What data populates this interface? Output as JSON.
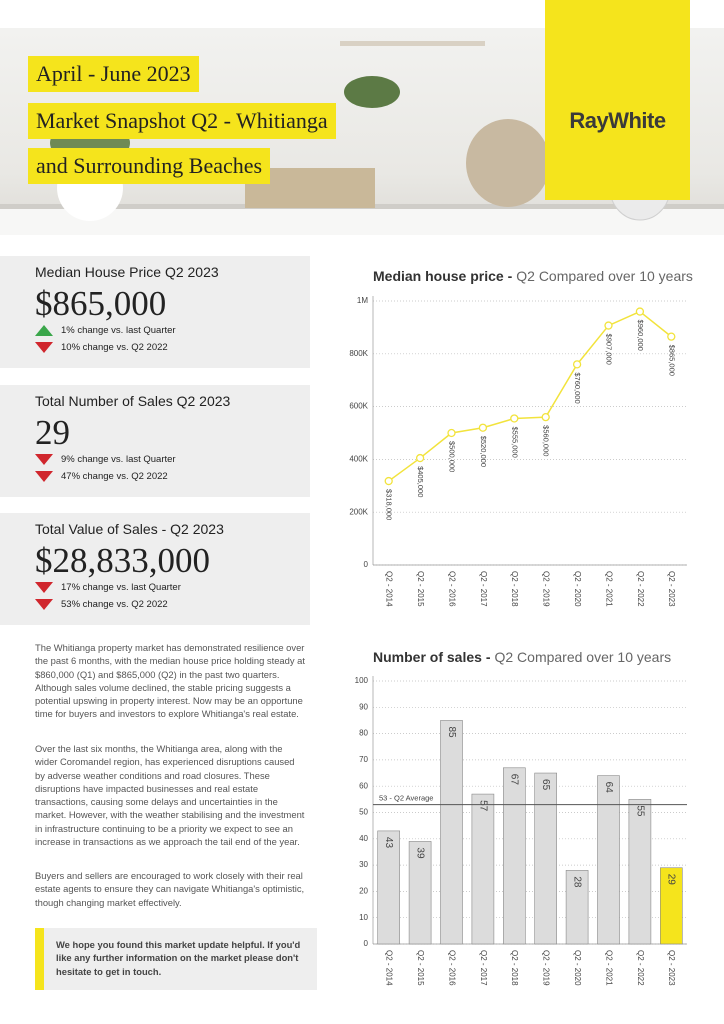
{
  "header": {
    "title_lines": [
      "April - June 2023",
      "Market Snapshot Q2 - Whitianga",
      "and Surrounding Beaches"
    ],
    "logo": "RayWhite"
  },
  "stats": [
    {
      "title": "Median House Price Q2 2023",
      "value": "$865,000",
      "changes": [
        {
          "direction": "up",
          "text": "1% change vs. last Quarter"
        },
        {
          "direction": "down",
          "text": "10% change vs. Q2 2022"
        }
      ]
    },
    {
      "title": "Total Number of Sales Q2 2023",
      "value": "29",
      "changes": [
        {
          "direction": "down",
          "text": "9% change vs. last Quarter"
        },
        {
          "direction": "down",
          "text": "47% change vs. Q2 2022"
        }
      ]
    },
    {
      "title": "Total Value of Sales - Q2 2023",
      "value": "$28,833,000",
      "changes": [
        {
          "direction": "down",
          "text": "17% change vs. last Quarter"
        },
        {
          "direction": "down",
          "text": "53% change vs. Q2 2022"
        }
      ]
    }
  ],
  "paragraphs": [
    "The Whitianga property market has demonstrated resilience over the past 6 months, with the median house price holding steady at $860,000 (Q1) and $865,000 (Q2) in the past two quarters. Although sales volume declined, the stable pricing suggests a potential upswing in property interest. Now may be an opportune time for buyers and investors to explore Whitianga's real estate.",
    "Over the last six months, the Whitianga area, along with the wider Coromandel region, has experienced disruptions caused by adverse weather conditions and road closures. These disruptions have impacted businesses and real estate transactions, causing some delays and uncertainties in the market. However, with the weather stabilising and the investment in infrastructure continuing to be a priority we expect to see an increase in transactions as we approach the tail end of the year.",
    "Buyers and sellers are encouraged to work closely with their real estate agents to ensure they can navigate Whitianga's optimistic, though changing market effectively."
  ],
  "callout": "We hope you found this market update helpful. If you'd like any further information on the market please don't hesitate to get in touch.",
  "chart_data": [
    {
      "type": "line",
      "title": "Median house price -",
      "subtitle": "Q2 Compared over 10 years",
      "categories": [
        "Q2 - 2014",
        "Q2 - 2015",
        "Q2 - 2016",
        "Q2 - 2017",
        "Q2 - 2018",
        "Q2 - 2019",
        "Q2 - 2020",
        "Q2 - 2021",
        "Q2 - 2022",
        "Q2 - 2023"
      ],
      "values": [
        318000,
        405000,
        500000,
        520000,
        555000,
        560000,
        760000,
        907000,
        960000,
        865000
      ],
      "value_labels": [
        "$318,000",
        "$405,000",
        "$500,000",
        "$520,000",
        "$555,000",
        "$560,000",
        "$760,000",
        "$907,000",
        "$960,000",
        "$865,000"
      ],
      "color": "#f2e33c",
      "ylim": [
        0,
        1000000
      ],
      "yticks": [
        0,
        {
          "value": 200000,
          "label": "200K"
        },
        {
          "value": 400000,
          "label": "400K"
        },
        {
          "value": 600000,
          "label": "600K"
        },
        {
          "value": 800000,
          "label": "800K"
        },
        {
          "value": 1000000,
          "label": "1M"
        }
      ],
      "grid": true
    },
    {
      "type": "bar",
      "title": "Number of sales -",
      "subtitle": "Q2 Compared over 10 years",
      "categories": [
        "Q2 - 2014",
        "Q2 - 2015",
        "Q2 - 2016",
        "Q2 - 2017",
        "Q2 - 2018",
        "Q2 - 2019",
        "Q2 - 2020",
        "Q2 - 2021",
        "Q2 - 2022",
        "Q2 - 2023"
      ],
      "values": [
        43,
        39,
        85,
        57,
        67,
        65,
        28,
        64,
        55,
        29
      ],
      "colors": [
        "#dcdcdc",
        "#dcdcdc",
        "#dcdcdc",
        "#dcdcdc",
        "#dcdcdc",
        "#dcdcdc",
        "#dcdcdc",
        "#dcdcdc",
        "#dcdcdc",
        "#f5e41c"
      ],
      "average": {
        "value": 53,
        "label": "53 - Q2 Average"
      },
      "ylim": [
        0,
        100
      ],
      "yticks": [
        0,
        10,
        20,
        30,
        40,
        50,
        60,
        70,
        80,
        90,
        100
      ],
      "grid": true
    }
  ]
}
